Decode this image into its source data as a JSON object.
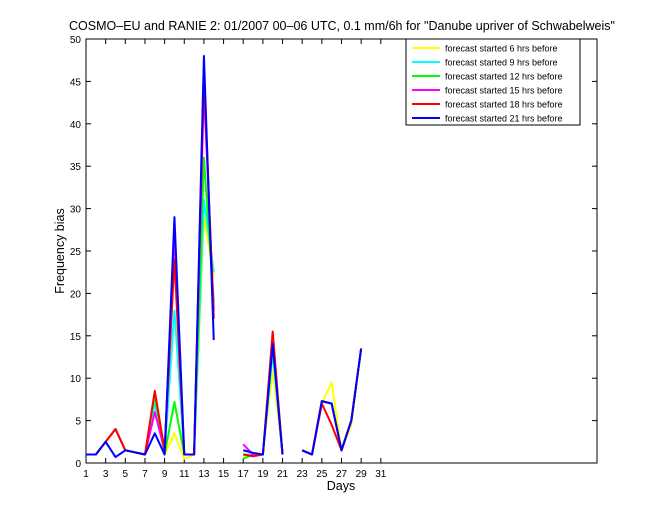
{
  "chart_data": {
    "type": "line",
    "title": "COSMO–EU and RANIE 2: 01/2007 00–06 UTC, 0.1 mm/6h for \"Danube upriver of Schwabelweis\"",
    "xlabel": "Days",
    "ylabel": "Frequency bias",
    "xlim": [
      1,
      53
    ],
    "ylim": [
      0,
      50
    ],
    "xticks": [
      1,
      3,
      5,
      7,
      9,
      11,
      13,
      15,
      17,
      19,
      21,
      23,
      25,
      27,
      29,
      31
    ],
    "yticks": [
      0,
      5,
      10,
      15,
      20,
      25,
      30,
      35,
      40,
      45,
      50
    ],
    "grid": false,
    "legend_position": "top-right",
    "series": [
      {
        "name": "forecast started 6 hrs before",
        "color": "#ffff00",
        "points": [
          [
            1,
            1
          ],
          [
            2,
            1
          ],
          [
            3,
            2.5
          ],
          [
            4,
            4
          ],
          [
            5,
            1.5
          ],
          [
            7,
            1
          ],
          [
            8,
            7.5
          ],
          [
            9,
            1
          ],
          [
            10,
            3.5
          ],
          [
            11,
            0.5
          ],
          [
            12,
            1
          ],
          [
            13,
            29
          ],
          [
            14,
            22
          ],
          [
            null,
            null
          ],
          [
            17,
            0.7
          ],
          [
            18,
            1
          ],
          [
            19,
            1
          ],
          [
            20,
            11
          ],
          [
            21,
            1
          ],
          [
            null,
            null
          ],
          [
            23,
            1.5
          ],
          [
            24,
            1
          ],
          [
            25,
            7
          ],
          [
            26,
            9.5
          ],
          [
            27,
            1.5
          ],
          [
            28,
            4.5
          ],
          [
            29,
            13.5
          ]
        ]
      },
      {
        "name": "forecast started 9 hrs before",
        "color": "#00ffff",
        "points": [
          [
            1,
            1
          ],
          [
            2,
            1
          ],
          [
            3,
            2.5
          ],
          [
            4,
            4
          ],
          [
            5,
            1.5
          ],
          [
            7,
            1
          ],
          [
            8,
            7
          ],
          [
            9,
            1
          ],
          [
            10,
            18
          ],
          [
            11,
            1
          ],
          [
            12,
            1
          ],
          [
            13,
            31
          ],
          [
            14,
            22.5
          ],
          [
            null,
            null
          ],
          [
            17,
            1
          ],
          [
            18,
            1
          ],
          [
            19,
            1
          ],
          [
            20,
            13
          ],
          [
            21,
            1
          ],
          [
            null,
            null
          ],
          [
            23,
            1.5
          ],
          [
            24,
            1
          ],
          [
            25,
            7.3
          ],
          [
            26,
            7
          ],
          [
            27,
            1.5
          ],
          [
            28,
            5
          ],
          [
            29,
            13.5
          ]
        ]
      },
      {
        "name": "forecast started 12 hrs before",
        "color": "#00ff00",
        "points": [
          [
            1,
            1
          ],
          [
            2,
            1
          ],
          [
            3,
            2.5
          ],
          [
            4,
            4
          ],
          [
            5,
            1.5
          ],
          [
            7,
            1
          ],
          [
            8,
            8
          ],
          [
            9,
            1
          ],
          [
            10,
            7.2
          ],
          [
            11,
            1
          ],
          [
            12,
            1
          ],
          [
            13,
            36
          ],
          [
            14,
            19
          ],
          [
            null,
            null
          ],
          [
            17,
            0.5
          ],
          [
            18,
            1
          ],
          [
            19,
            1
          ],
          [
            20,
            14
          ],
          [
            21,
            1
          ],
          [
            null,
            null
          ],
          [
            23,
            1.5
          ],
          [
            24,
            1
          ],
          [
            25,
            7.3
          ],
          [
            26,
            7
          ],
          [
            27,
            1.5
          ],
          [
            28,
            5
          ],
          [
            29,
            13.5
          ]
        ]
      },
      {
        "name": "forecast started 15 hrs before",
        "color": "#ff00ff",
        "points": [
          [
            1,
            1
          ],
          [
            2,
            1
          ],
          [
            3,
            2.5
          ],
          [
            4,
            4
          ],
          [
            5,
            1.5
          ],
          [
            7,
            1
          ],
          [
            8,
            6
          ],
          [
            9,
            1.5
          ],
          [
            10,
            27
          ],
          [
            11,
            1
          ],
          [
            12,
            1
          ],
          [
            13,
            44
          ],
          [
            14,
            18
          ],
          [
            null,
            null
          ],
          [
            17,
            2.2
          ],
          [
            18,
            1
          ],
          [
            19,
            1
          ],
          [
            20,
            14.5
          ],
          [
            21,
            1
          ],
          [
            null,
            null
          ],
          [
            23,
            1.5
          ],
          [
            24,
            1
          ],
          [
            25,
            7.3
          ],
          [
            26,
            7
          ],
          [
            27,
            1.5
          ],
          [
            28,
            5
          ],
          [
            29,
            13.5
          ]
        ]
      },
      {
        "name": "forecast started 18 hrs before",
        "color": "#ff0000",
        "points": [
          [
            1,
            1
          ],
          [
            2,
            1
          ],
          [
            3,
            2.5
          ],
          [
            4,
            4
          ],
          [
            5,
            1.5
          ],
          [
            7,
            1
          ],
          [
            8,
            8.5
          ],
          [
            9,
            1.5
          ],
          [
            10,
            24
          ],
          [
            11,
            1
          ],
          [
            12,
            1
          ],
          [
            13,
            46
          ],
          [
            14,
            17
          ],
          [
            null,
            null
          ],
          [
            17,
            1
          ],
          [
            18,
            0.8
          ],
          [
            19,
            1
          ],
          [
            20,
            15.5
          ],
          [
            21,
            1
          ],
          [
            null,
            null
          ],
          [
            23,
            1.5
          ],
          [
            24,
            1
          ],
          [
            25,
            7
          ],
          [
            26,
            4.5
          ],
          [
            27,
            1.5
          ],
          [
            28,
            5
          ],
          [
            29,
            13.5
          ]
        ]
      },
      {
        "name": "forecast started 21 hrs before",
        "color": "#0000ff",
        "points": [
          [
            1,
            1
          ],
          [
            2,
            1
          ],
          [
            3,
            2.5
          ],
          [
            4,
            0.7
          ],
          [
            5,
            1.5
          ],
          [
            7,
            1
          ],
          [
            8,
            3.5
          ],
          [
            9,
            1
          ],
          [
            10,
            29
          ],
          [
            11,
            1
          ],
          [
            12,
            1
          ],
          [
            13,
            48
          ],
          [
            14,
            14.5
          ],
          [
            null,
            null
          ],
          [
            17,
            1.5
          ],
          [
            18,
            1.2
          ],
          [
            19,
            1
          ],
          [
            20,
            14
          ],
          [
            21,
            1
          ],
          [
            null,
            null
          ],
          [
            23,
            1.5
          ],
          [
            24,
            1
          ],
          [
            25,
            7.3
          ],
          [
            26,
            7
          ],
          [
            27,
            1.5
          ],
          [
            28,
            5
          ],
          [
            29,
            13.5
          ]
        ]
      }
    ]
  }
}
